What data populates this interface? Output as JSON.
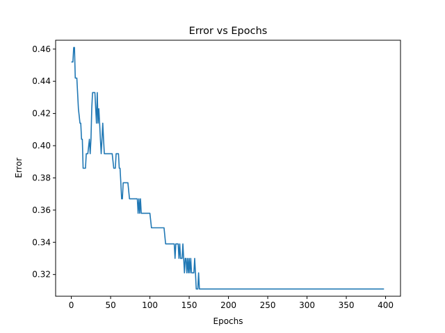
{
  "chart_data": {
    "type": "line",
    "title": "Error vs Epochs",
    "xlabel": "Epochs",
    "ylabel": "Error",
    "xlim": [
      -20,
      419
    ],
    "ylim": [
      0.3065,
      0.4655
    ],
    "xticks": [
      0,
      50,
      100,
      150,
      200,
      250,
      300,
      350,
      400
    ],
    "yticks": [
      0.32,
      0.34,
      0.36,
      0.38,
      0.4,
      0.42,
      0.44,
      0.46
    ],
    "ytick_labels": [
      "0.32",
      "0.34",
      "0.36",
      "0.38",
      "0.40",
      "0.42",
      "0.44",
      "0.46"
    ],
    "grid": false,
    "series": [
      {
        "color": "#1f77b4",
        "x": [
          0,
          2,
          3,
          4,
          5,
          6,
          7,
          9,
          11,
          12,
          13,
          14,
          15,
          16,
          18,
          19,
          20,
          21,
          23,
          24,
          25,
          26,
          27,
          28,
          30,
          31,
          32,
          33,
          34,
          35,
          36,
          37,
          38,
          39,
          40,
          41,
          42,
          43,
          44,
          46,
          48,
          50,
          52,
          54,
          56,
          57,
          58,
          59,
          60,
          61,
          62,
          63,
          64,
          65,
          66,
          68,
          70,
          72,
          74,
          75,
          76,
          78,
          80,
          82,
          84,
          85,
          86,
          87,
          88,
          89,
          90,
          92,
          94,
          96,
          98,
          100,
          102,
          104,
          106,
          108,
          110,
          112,
          114,
          116,
          118,
          120,
          122,
          124,
          126,
          128,
          130,
          131,
          132,
          133,
          134,
          135,
          136,
          137,
          138,
          139,
          140,
          141,
          142,
          143,
          144,
          145,
          146,
          147,
          148,
          149,
          150,
          151,
          152,
          153,
          154,
          155,
          156,
          157,
          158,
          159,
          160,
          161,
          162,
          163,
          164,
          170,
          180,
          200,
          250,
          300,
          350,
          398
        ],
        "y": [
          0.452,
          0.452,
          0.461,
          0.461,
          0.442,
          0.442,
          0.442,
          0.423,
          0.414,
          0.414,
          0.404,
          0.404,
          0.386,
          0.386,
          0.386,
          0.395,
          0.395,
          0.395,
          0.404,
          0.395,
          0.404,
          0.423,
          0.433,
          0.433,
          0.433,
          0.423,
          0.414,
          0.433,
          0.414,
          0.423,
          0.414,
          0.404,
          0.395,
          0.404,
          0.414,
          0.404,
          0.395,
          0.395,
          0.395,
          0.395,
          0.395,
          0.395,
          0.395,
          0.386,
          0.386,
          0.395,
          0.395,
          0.395,
          0.395,
          0.386,
          0.386,
          0.377,
          0.367,
          0.367,
          0.377,
          0.377,
          0.377,
          0.377,
          0.367,
          0.367,
          0.367,
          0.367,
          0.367,
          0.367,
          0.367,
          0.358,
          0.367,
          0.358,
          0.367,
          0.358,
          0.358,
          0.358,
          0.358,
          0.358,
          0.358,
          0.358,
          0.349,
          0.349,
          0.349,
          0.349,
          0.349,
          0.349,
          0.349,
          0.349,
          0.349,
          0.339,
          0.339,
          0.339,
          0.339,
          0.339,
          0.339,
          0.339,
          0.33,
          0.339,
          0.339,
          0.339,
          0.339,
          0.33,
          0.339,
          0.33,
          0.33,
          0.33,
          0.339,
          0.33,
          0.321,
          0.33,
          0.33,
          0.321,
          0.33,
          0.321,
          0.33,
          0.321,
          0.33,
          0.321,
          0.321,
          0.321,
          0.321,
          0.33,
          0.321,
          0.311,
          0.311,
          0.311,
          0.321,
          0.311,
          0.311,
          0.311,
          0.311,
          0.311,
          0.311,
          0.311,
          0.311,
          0.311
        ]
      }
    ]
  }
}
